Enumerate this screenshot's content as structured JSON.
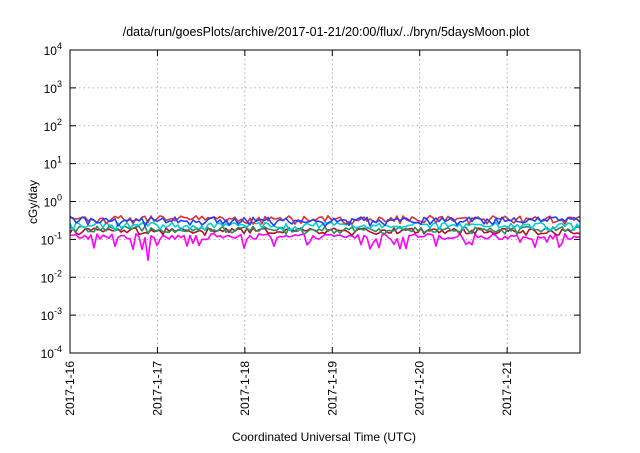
{
  "chart_data": {
    "type": "line",
    "title": "/data/run/goesPlots/archive/2017-01-21/20:00/flux/../bryn/5daysMoon.plot",
    "xlabel": "Coordinated Universal Time (UTC)",
    "ylabel": "cGy/day",
    "yscale": "log",
    "ylim": [
      0.0001,
      10000
    ],
    "y_ticks": [
      {
        "base": "10",
        "exp": "-4",
        "value": 0.0001
      },
      {
        "base": "10",
        "exp": "-3",
        "value": 0.001
      },
      {
        "base": "10",
        "exp": "-2",
        "value": 0.01
      },
      {
        "base": "10",
        "exp": "-1",
        "value": 0.1
      },
      {
        "base": "10",
        "exp": "0",
        "value": 1
      },
      {
        "base": "10",
        "exp": "1",
        "value": 10
      },
      {
        "base": "10",
        "exp": "2",
        "value": 100
      },
      {
        "base": "10",
        "exp": "3",
        "value": 1000
      },
      {
        "base": "10",
        "exp": "4",
        "value": 10000
      }
    ],
    "x_range": [
      "2017-01-16T00:00",
      "2017-01-21T20:00"
    ],
    "x_ticks": [
      "2017-1-16",
      "2017-1-17",
      "2017-1-18",
      "2017-1-19",
      "2017-1-20",
      "2017-1-21"
    ],
    "grid": true,
    "legend": "none",
    "series": [
      {
        "color": "#ff00ff",
        "level": 0.12,
        "variation": 0.55,
        "dip_min": 0.028,
        "dip_time": "2017-01-16T21:30"
      },
      {
        "color": "#b01030",
        "level": 0.17,
        "variation": 0.25
      },
      {
        "color": "#2e8b57",
        "level": 0.19,
        "variation": 0.3
      },
      {
        "color": "#00ced1",
        "level": 0.24,
        "variation": 0.3
      },
      {
        "color": "#e03030",
        "level": 0.36,
        "variation": 0.3
      },
      {
        "color": "#2040ff",
        "level": 0.33,
        "variation": 0.35
      }
    ]
  }
}
